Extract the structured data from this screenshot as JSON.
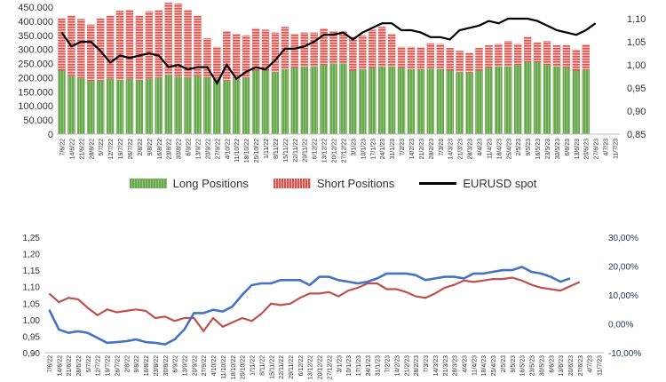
{
  "colors": {
    "long": "#6aa84f",
    "short": "#d9534f",
    "eurusd": "#000000",
    "blue_line": "#4472c4",
    "red_line": "#c0504d"
  },
  "chart_data": [
    {
      "type": "bar",
      "stacked": true,
      "categories": [
        "7/6/22",
        "14/6/22",
        "21/6/22",
        "28/6/22",
        "5/7/22",
        "12/7/22",
        "19/7/22",
        "26/7/22",
        "2/8/22",
        "9/8/22",
        "16/8/22",
        "23/8/22",
        "30/8/22",
        "6/9/22",
        "13/9/22",
        "20/9/22",
        "27/9/22",
        "4/10/22",
        "11/10/22",
        "18/10/22",
        "25/10/22",
        "1/11/22",
        "8/11/22",
        "15/11/22",
        "22/11/22",
        "29/11/22",
        "6/12/22",
        "13/12/22",
        "20/12/22",
        "27/12/22",
        "3/1/23",
        "10/1/23",
        "17/1/23",
        "24/1/23",
        "31/1/23",
        "7/2/23",
        "14/2/23",
        "21/2/23",
        "28/2/23",
        "7/3/23",
        "14/3/23",
        "21/3/23",
        "28/3/23",
        "4/4/23",
        "11/4/23",
        "18/4/23",
        "25/4/23",
        "2/5/23",
        "9/5/23",
        "16/5/23",
        "23/5/23",
        "30/5/23",
        "6/6/23",
        "13/6/23",
        "20/6/23",
        "27/6/23",
        "4/7/23",
        "11/7/23"
      ],
      "tick_labels": [
        "7/6/22",
        "14/6/22",
        "21/6/22",
        "28/6/22",
        "5/7/22",
        "12/7/22",
        "19/7/22",
        "26/7/22",
        "2/8/22",
        "9/8/22",
        "16/8/22",
        "23/8/22",
        "30/8/22",
        "6/9/22",
        "13/9/22",
        "20/9/22",
        "27/9/22",
        "4/10/22",
        "11/10/22",
        "18/10/22",
        "25/10/22",
        "1/11/22",
        "8/11/22",
        "15/11/22",
        "22/11/22",
        "29/11/22",
        "6/12/22",
        "13/12/22",
        "20/12/22",
        "27/12/22",
        "3/1/23",
        "10/1/23",
        "17/1/23",
        "24/1/23",
        "31/1/23",
        "7/2/23",
        "14/2/23",
        "21/2/23",
        "28/2/23",
        "7/3/23",
        "14/3/23",
        "21/3/23",
        "28/3/23",
        "4/4/23",
        "11/4/23",
        "18/4/23",
        "25/4/23",
        "2/5/23",
        "9/5/23",
        "16/5/23",
        "23/5/23",
        "30/5/23",
        "6/6/23",
        "13/6/23",
        "20/6/23",
        "27/6/23",
        "4/7/23",
        "11/7/23"
      ],
      "series": [
        {
          "name": "Long Positions",
          "axis": "left",
          "values": [
            225,
            205,
            198,
            188,
            190,
            195,
            192,
            195,
            190,
            195,
            200,
            210,
            203,
            200,
            205,
            200,
            195,
            190,
            195,
            200,
            225,
            225,
            220,
            230,
            235,
            240,
            240,
            245,
            250,
            250,
            225,
            230,
            235,
            240,
            240,
            235,
            230,
            228,
            232,
            230,
            225,
            220,
            218,
            225,
            235,
            240,
            240,
            245,
            255,
            255,
            245,
            240,
            235,
            225,
            228,
            null,
            null,
            null
          ]
        },
        {
          "name": "Short Positions",
          "axis": "left",
          "values": [
            185,
            215,
            210,
            200,
            220,
            225,
            245,
            245,
            230,
            240,
            240,
            255,
            260,
            240,
            215,
            140,
            115,
            175,
            160,
            150,
            150,
            145,
            140,
            150,
            120,
            120,
            120,
            130,
            115,
            115,
            120,
            120,
            135,
            140,
            115,
            75,
            80,
            80,
            90,
            90,
            80,
            75,
            70,
            80,
            80,
            80,
            90,
            75,
            90,
            70,
            85,
            75,
            80,
            75,
            90,
            null,
            null,
            null
          ]
        },
        {
          "name": "EURUSD spot",
          "axis": "right",
          "values": [
            1.07,
            1.04,
            1.05,
            1.05,
            1.03,
            1.005,
            1.02,
            1.015,
            1.02,
            1.025,
            1.02,
            0.995,
            1.0,
            0.99,
            0.995,
            0.995,
            0.96,
            1.0,
            0.97,
            0.985,
            0.995,
            0.99,
            1.01,
            1.035,
            1.035,
            1.04,
            1.05,
            1.065,
            1.065,
            1.07,
            1.055,
            1.07,
            1.08,
            1.09,
            1.09,
            1.075,
            1.075,
            1.07,
            1.06,
            1.06,
            1.055,
            1.075,
            1.08,
            1.085,
            1.095,
            1.09,
            1.1,
            1.1,
            1.1,
            1.095,
            1.085,
            1.075,
            1.07,
            1.065,
            1.075,
            1.09,
            null,
            null
          ]
        }
      ],
      "yticks_left": [
        "0",
        "50.000",
        "100.000",
        "150.000",
        "200.000",
        "250.000",
        "300.000",
        "350.000",
        "400.000",
        "450.000"
      ],
      "yticks_right": [
        "0,85",
        "0,90",
        "0,95",
        "1,00",
        "1,05",
        "1,10"
      ],
      "ylim_left": [
        0,
        450
      ],
      "ylim_right": [
        0.85,
        1.125
      ],
      "legend": [
        "Long Positions",
        "Short Positions",
        "EURUSD spot"
      ]
    },
    {
      "type": "line",
      "categories": [
        "7/6/22",
        "14/6/22",
        "21/6/22",
        "28/6/22",
        "5/7/22",
        "12/7/22",
        "19/7/22",
        "26/7/22",
        "2/8/22",
        "9/8/22",
        "16/8/22",
        "23/8/22",
        "30/8/22",
        "6/9/22",
        "13/9/22",
        "20/9/22",
        "27/9/22",
        "4/10/22",
        "11/10/22",
        "18/10/22",
        "25/10/22",
        "1/11/22",
        "8/11/22",
        "15/11/22",
        "22/11/22",
        "29/11/22",
        "6/12/22",
        "13/12/22",
        "20/12/22",
        "27/12/22",
        "3/1/23",
        "10/1/23",
        "17/1/23",
        "24/1/23",
        "31/1/23",
        "7/2/23",
        "14/2/23",
        "21/2/23",
        "28/2/23",
        "7/3/23",
        "14/3/23",
        "21/3/23",
        "28/3/23",
        "4/4/23",
        "11/4/23",
        "18/4/23",
        "25/4/23",
        "2/5/23",
        "9/5/23",
        "16/5/23",
        "23/5/23",
        "30/5/23",
        "6/6/23",
        "13/6/23",
        "20/6/23",
        "27/6/23",
        "4/7/23",
        "11/7/23"
      ],
      "tick_labels": [
        "7/6/22",
        "14/6/22",
        "21/6/22",
        "28/6/22",
        "5/7/22",
        "12/7/22",
        "19/7/22",
        "26/7/22",
        "2/8/22",
        "9/8/22",
        "16/8/22",
        "23/8/22",
        "30/8/22",
        "6/9/22",
        "13/9/22",
        "20/9/22",
        "27/9/22",
        "4/10/22",
        "11/10/22",
        "18/10/22",
        "25/10/22",
        "1/11/22",
        "8/11/22",
        "15/11/22",
        "22/11/22",
        "29/11/22",
        "6/12/22",
        "13/12/22",
        "20/12/22",
        "27/12/22",
        "3/1/23",
        "10/1/23",
        "17/1/23",
        "24/1/23",
        "31/1/23",
        "7/2/23",
        "14/2/23",
        "21/2/23",
        "28/2/23",
        "7/3/23",
        "14/3/23",
        "21/3/23",
        "28/3/23",
        "4/4/23",
        "11/4/23",
        "18/4/23",
        "25/4/23",
        "2/5/23",
        "9/5/23",
        "16/5/23",
        "23/5/23",
        "30/5/23",
        "6/6/23",
        "13/6/23",
        "20/6/23",
        "27/6/23",
        "4/7/23",
        "11/7/23"
      ],
      "series": [
        {
          "axis": "left",
          "values": [
            1.03,
            0.97,
            0.96,
            0.965,
            0.96,
            0.945,
            0.93,
            0.932,
            0.935,
            0.94,
            0.932,
            0.93,
            0.925,
            0.94,
            0.97,
            1.02,
            1.02,
            1.03,
            1.025,
            1.04,
            1.075,
            1.105,
            1.11,
            1.11,
            1.12,
            1.12,
            1.12,
            1.105,
            1.13,
            1.13,
            1.12,
            1.115,
            1.11,
            1.115,
            1.125,
            1.14,
            1.14,
            1.14,
            1.135,
            1.12,
            1.125,
            1.13,
            1.13,
            1.125,
            1.14,
            1.14,
            1.145,
            1.15,
            1.15,
            1.16,
            1.145,
            1.14,
            1.13,
            1.115,
            1.125,
            null,
            null,
            null
          ]
        },
        {
          "axis": "right",
          "values": [
            10.5,
            7.5,
            9.0,
            8.5,
            5.5,
            3.0,
            5.0,
            4.0,
            4.5,
            5.0,
            4.5,
            2.0,
            2.5,
            1.0,
            2.0,
            2.0,
            -2.5,
            2.0,
            -1.0,
            0.5,
            2.0,
            1.0,
            3.5,
            7.0,
            6.5,
            7.0,
            9.0,
            10.5,
            10.5,
            11.0,
            9.5,
            11.5,
            12.5,
            14.0,
            14.0,
            12.0,
            12.0,
            11.0,
            9.5,
            9.0,
            10.5,
            12.5,
            13.5,
            15.0,
            14.5,
            15.0,
            15.5,
            15.5,
            16.0,
            15.0,
            13.5,
            12.5,
            12.0,
            11.5,
            13.0,
            14.5,
            null,
            null
          ]
        }
      ],
      "yticks_left": [
        "0,90",
        "0,95",
        "1,00",
        "1,05",
        "1,10",
        "1,15",
        "1,20",
        "1,25"
      ],
      "yticks_right": [
        "-10,00%",
        "0,00%",
        "10,00%",
        "20,00%",
        "30,00%"
      ],
      "ylim_left": [
        0.9,
        1.25
      ],
      "ylim_right": [
        -10,
        30
      ]
    }
  ]
}
